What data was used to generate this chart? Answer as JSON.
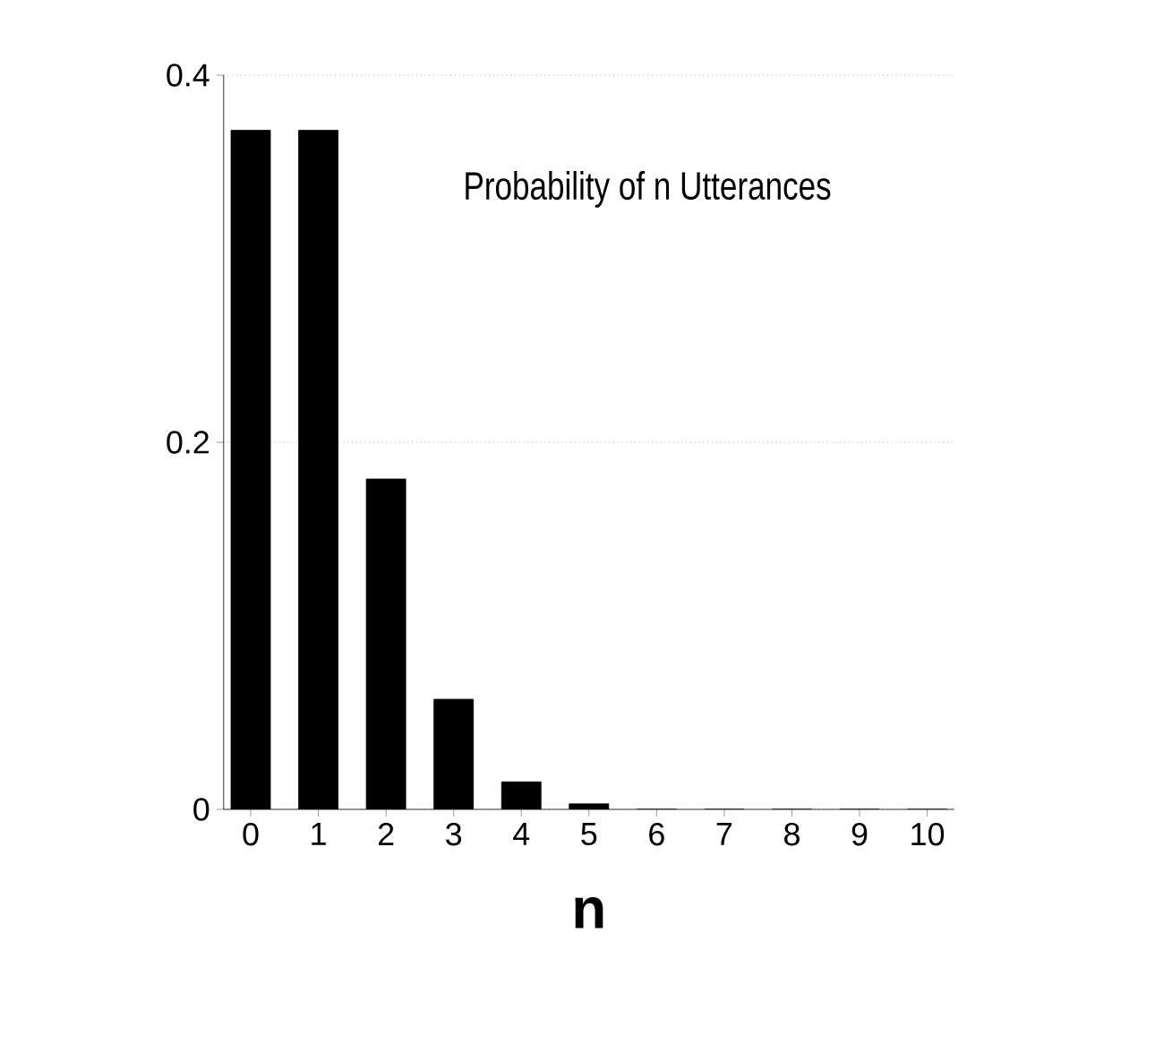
{
  "chart_data": {
    "type": "bar",
    "title": "Probability of n Utterances",
    "xlabel": "n",
    "categories": [
      "0",
      "1",
      "2",
      "3",
      "4",
      "5",
      "6",
      "7",
      "8",
      "9",
      "10"
    ],
    "values": [
      0.37,
      0.37,
      0.18,
      0.06,
      0.015,
      0.003,
      0,
      0,
      0,
      0,
      0
    ],
    "color": "#000000",
    "ylim": [
      0,
      0.4
    ],
    "yticks": [
      0,
      0.2,
      0.4
    ],
    "grid": "y"
  }
}
